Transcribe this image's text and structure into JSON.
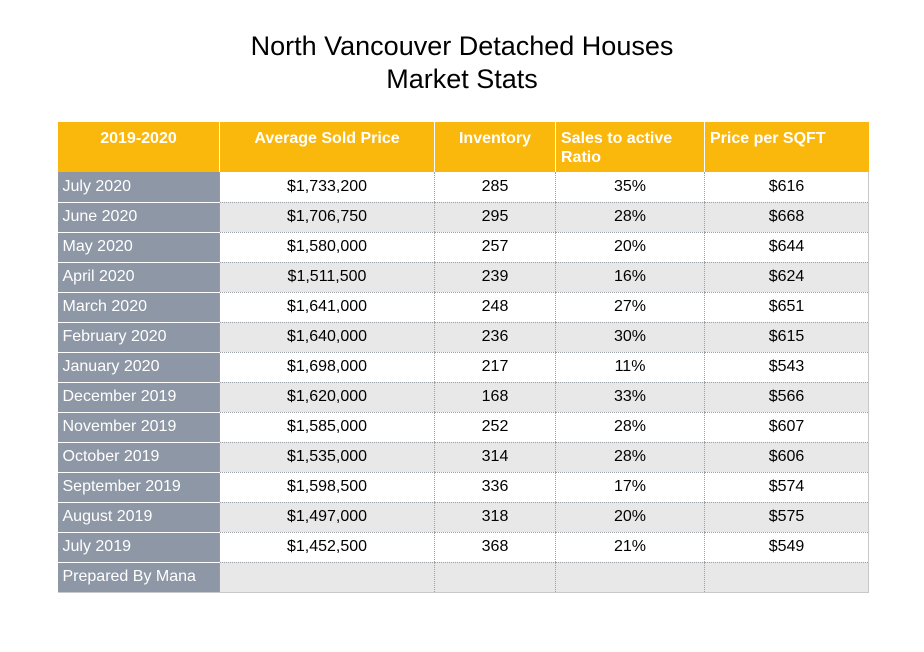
{
  "chart_data": {
    "type": "table",
    "title": "North Vancouver Detached Houses",
    "subtitle": "Market Stats",
    "columns": [
      "2019-2020",
      "Average Sold Price",
      "Inventory",
      "Sales to active Ratio",
      "Price per SQFT"
    ],
    "rows": [
      [
        "July 2020",
        "$1,733,200",
        "285",
        "35%",
        "$616"
      ],
      [
        "June 2020",
        "$1,706,750",
        "295",
        "28%",
        "$668"
      ],
      [
        "May 2020",
        "$1,580,000",
        "257",
        "20%",
        "$644"
      ],
      [
        "April 2020",
        "$1,511,500",
        "239",
        "16%",
        "$624"
      ],
      [
        "March 2020",
        "$1,641,000",
        "248",
        "27%",
        "$651"
      ],
      [
        "February 2020",
        "$1,640,000",
        "236",
        "30%",
        "$615"
      ],
      [
        "January 2020",
        "$1,698,000",
        "217",
        "11%",
        "$543"
      ],
      [
        "December 2019",
        "$1,620,000",
        "168",
        "33%",
        "$566"
      ],
      [
        "November 2019",
        "$1,585,000",
        "252",
        "28%",
        "$607"
      ],
      [
        "October 2019",
        "$1,535,000",
        "314",
        "28%",
        "$606"
      ],
      [
        "September 2019",
        "$1,598,500",
        "336",
        "17%",
        "$574"
      ],
      [
        "August 2019",
        "$1,497,000",
        "318",
        "20%",
        "$575"
      ],
      [
        "July 2019",
        "$1,452,500",
        "368",
        "21%",
        "$549"
      ]
    ],
    "footer": "Prepared By Mana"
  },
  "colors": {
    "header": "#fbb80c",
    "label_column": "#8d97a5",
    "row_alt": "#e8e8e8"
  }
}
